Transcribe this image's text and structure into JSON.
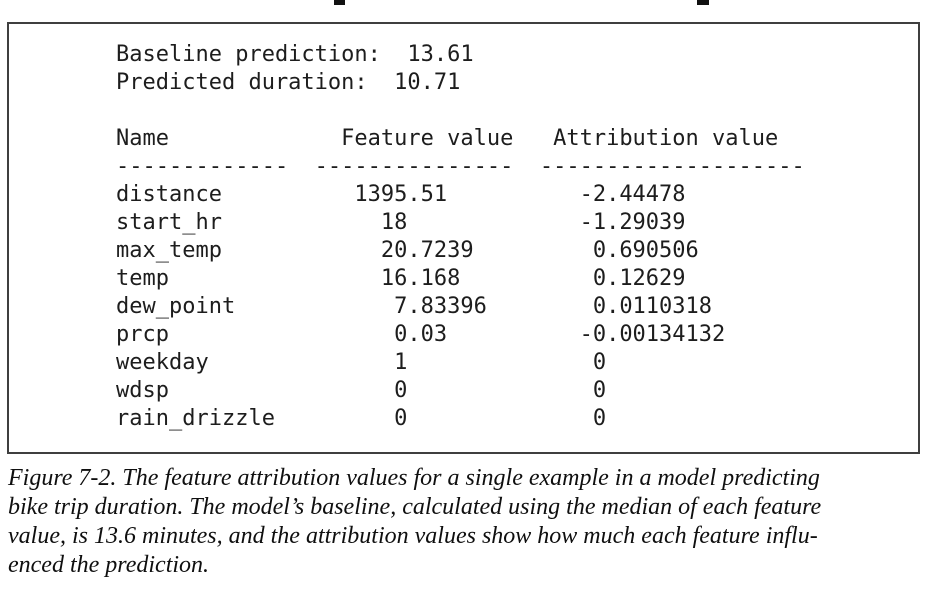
{
  "terminal": {
    "baseline_prediction_label": "Baseline prediction:",
    "baseline_prediction_value": "13.61",
    "predicted_duration_label": "Predicted duration:",
    "predicted_duration_value": "10.71",
    "lines": [
      "Baseline prediction:  13.61",
      "Predicted duration:  10.71",
      "",
      "Name             Feature value   Attribution value",
      "-------------  ---------------  --------------------",
      "distance          1395.51          -2.44478",
      "start_hr            18             -1.29039",
      "max_temp            20.7239         0.690506",
      "temp                16.168          0.12629",
      "dew_point            7.83396        0.0110318",
      "prcp                 0.03          -0.00134132",
      "weekday              1              0",
      "wdsp                 0              0",
      "rain_drizzle         0              0"
    ]
  },
  "table": {
    "columns": [
      "Name",
      "Feature value",
      "Attribution value"
    ],
    "rows": [
      {
        "name": "distance",
        "feature_value": "1395.51",
        "attribution_value": "-2.44478"
      },
      {
        "name": "start_hr",
        "feature_value": "18",
        "attribution_value": "-1.29039"
      },
      {
        "name": "max_temp",
        "feature_value": "20.7239",
        "attribution_value": "0.690506"
      },
      {
        "name": "temp",
        "feature_value": "16.168",
        "attribution_value": "0.12629"
      },
      {
        "name": "dew_point",
        "feature_value": "7.83396",
        "attribution_value": "0.0110318"
      },
      {
        "name": "prcp",
        "feature_value": "0.03",
        "attribution_value": "-0.00134132"
      },
      {
        "name": "weekday",
        "feature_value": "1",
        "attribution_value": "0"
      },
      {
        "name": "wdsp",
        "feature_value": "0",
        "attribution_value": "0"
      },
      {
        "name": "rain_drizzle",
        "feature_value": "0",
        "attribution_value": "0"
      }
    ]
  },
  "caption": {
    "figure_label": "Figure 7-2.",
    "lines": [
      "Figure 7-2. The feature attribution values for a single example in a model predicting",
      "bike trip duration. The model’s baseline, calculated using the median of each feature",
      "value, is 13.6 minutes, and the attribution values show how much each feature influ-",
      "enced the prediction."
    ],
    "full_text": "Figure 7-2. The feature attribution values for a single example in a model predicting bike trip duration. The model’s baseline, calculated using the median of each feature value, is 13.6 minutes, and the attribution values show how much each feature influenced the prediction."
  },
  "colors": {
    "terminal_text": "#1d1d1d",
    "box_border": "#3f3f3f",
    "caption_text": "#0f0f0f",
    "page_background": "#ffffff"
  }
}
